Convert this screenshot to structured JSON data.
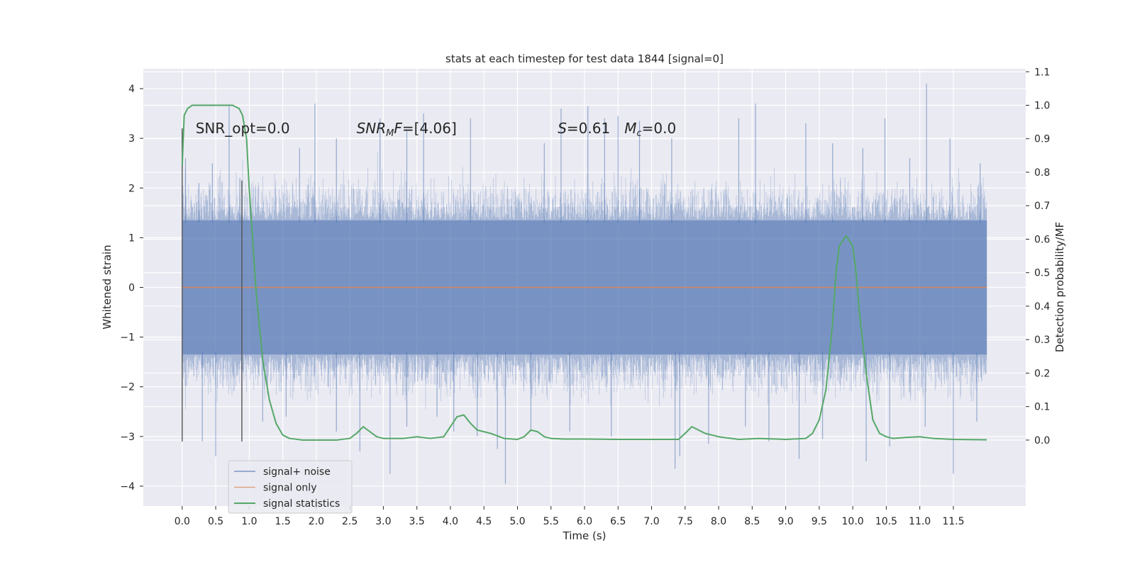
{
  "chart_data": {
    "type": "line",
    "title": "stats at each timestep for test data 1844 [signal=0]",
    "xlabel": "Time (s)",
    "ylabel": "Whitened strain",
    "ylabel_right": "Detection probability/MF",
    "xlim": [
      -0.58,
      12.58
    ],
    "ylim": [
      -4.4,
      4.4
    ],
    "ylim_right": [
      -0.197,
      1.109
    ],
    "xticks": [
      0.0,
      0.5,
      1.0,
      1.5,
      2.0,
      2.5,
      3.0,
      3.5,
      4.0,
      4.5,
      5.0,
      5.5,
      6.0,
      6.5,
      7.0,
      7.5,
      8.0,
      8.5,
      9.0,
      9.5,
      10.0,
      10.5,
      11.0,
      11.5
    ],
    "xtick_labels": [
      "0.0",
      "0.5",
      "1.0",
      "1.5",
      "2.0",
      "2.5",
      "3.0",
      "3.5",
      "4.0",
      "4.5",
      "5.0",
      "5.5",
      "6.0",
      "6.5",
      "7.0",
      "7.5",
      "8.0",
      "8.5",
      "9.0",
      "9.5",
      "10.0",
      "10.5",
      "11.0",
      "11.5"
    ],
    "yticks": [
      -4,
      -3,
      -2,
      -1,
      0,
      1,
      2,
      3,
      4
    ],
    "ytick_labels": [
      "−4",
      "−3",
      "−2",
      "−1",
      "0",
      "1",
      "2",
      "3",
      "4"
    ],
    "yticks_right": [
      0.0,
      0.1,
      0.2,
      0.3,
      0.4,
      0.5,
      0.6,
      0.7,
      0.8,
      0.9,
      1.0,
      1.1
    ],
    "ytick_labels_right": [
      "0.0",
      "0.1",
      "0.2",
      "0.3",
      "0.4",
      "0.5",
      "0.6",
      "0.7",
      "0.8",
      "0.9",
      "1.0",
      "1.1"
    ],
    "grid": true,
    "legend_position": "bottom-left",
    "annotations": [
      {
        "text": "SNR_opt=0.0",
        "x": 0.2,
        "y": 3.2
      },
      {
        "text": "SNR_MF=[4.06]",
        "x": 2.6,
        "y": 3.2
      },
      {
        "text": "S=0.61   M_c=0.0",
        "x": 5.6,
        "y": 3.2
      }
    ],
    "markers": [
      {
        "x": 0.0,
        "y0": -3.1,
        "y1": 3.2
      },
      {
        "x": 0.89,
        "y0": -3.1,
        "y1": 2.15
      }
    ],
    "series": [
      {
        "name": "signal+ noise",
        "axis": "left",
        "color": "#4c72b0",
        "render": "noise-band",
        "t_range": [
          0.0,
          12.0
        ],
        "core_band": [
          -1.35,
          1.35
        ],
        "spikes": [
          [
            0.05,
            2.6
          ],
          [
            0.25,
            2.1
          ],
          [
            0.45,
            2.5
          ],
          [
            0.7,
            3.65
          ],
          [
            0.86,
            2.2
          ],
          [
            1.75,
            2.8
          ],
          [
            1.98,
            3.7
          ],
          [
            2.3,
            3.0
          ],
          [
            2.95,
            3.4
          ],
          [
            3.35,
            3.15
          ],
          [
            3.6,
            3.5
          ],
          [
            4.3,
            3.4
          ],
          [
            5.4,
            2.9
          ],
          [
            5.65,
            3.6
          ],
          [
            6.05,
            3.65
          ],
          [
            6.3,
            3.4
          ],
          [
            6.5,
            3.45
          ],
          [
            6.82,
            3.35
          ],
          [
            7.3,
            3.0
          ],
          [
            8.3,
            3.4
          ],
          [
            8.55,
            3.7
          ],
          [
            9.3,
            3.3
          ],
          [
            9.7,
            2.9
          ],
          [
            10.15,
            2.8
          ],
          [
            10.48,
            3.4
          ],
          [
            10.85,
            2.6
          ],
          [
            11.1,
            4.1
          ],
          [
            11.45,
            3.0
          ],
          [
            11.9,
            2.5
          ]
        ],
        "dips": [
          [
            0.3,
            -3.1
          ],
          [
            0.5,
            -3.4
          ],
          [
            1.2,
            -2.7
          ],
          [
            1.55,
            -2.6
          ],
          [
            2.3,
            -2.9
          ],
          [
            2.65,
            -3.3
          ],
          [
            3.1,
            -3.75
          ],
          [
            3.35,
            -2.8
          ],
          [
            3.8,
            -2.6
          ],
          [
            4.05,
            -2.9
          ],
          [
            4.4,
            -3.0
          ],
          [
            4.7,
            -3.25
          ],
          [
            4.82,
            -3.95
          ],
          [
            5.2,
            -2.9
          ],
          [
            5.78,
            -2.9
          ],
          [
            6.4,
            -3.0
          ],
          [
            7.35,
            -3.65
          ],
          [
            7.42,
            -3.4
          ],
          [
            7.85,
            -3.15
          ],
          [
            8.4,
            -2.8
          ],
          [
            8.75,
            -3.1
          ],
          [
            9.2,
            -3.45
          ],
          [
            9.55,
            -3.05
          ],
          [
            10.2,
            -3.5
          ],
          [
            10.55,
            -3.2
          ],
          [
            11.08,
            -2.8
          ],
          [
            11.5,
            -3.75
          ],
          [
            11.85,
            -2.7
          ]
        ]
      },
      {
        "name": "signal only",
        "axis": "left",
        "color": "#dd8452",
        "render": "line",
        "x": [
          0.0,
          12.0
        ],
        "y": [
          0.0,
          0.0
        ]
      },
      {
        "name": "signal statistics",
        "axis": "right",
        "color": "#55a868",
        "render": "line",
        "x": [
          0.0,
          0.03,
          0.08,
          0.15,
          0.25,
          0.4,
          0.6,
          0.75,
          0.85,
          0.9,
          0.96,
          1.0,
          1.05,
          1.1,
          1.2,
          1.3,
          1.4,
          1.5,
          1.6,
          1.8,
          2.0,
          2.3,
          2.5,
          2.6,
          2.7,
          2.8,
          2.9,
          3.0,
          3.3,
          3.5,
          3.7,
          3.9,
          4.0,
          4.1,
          4.2,
          4.3,
          4.4,
          4.6,
          4.8,
          5.0,
          5.1,
          5.2,
          5.3,
          5.4,
          5.5,
          5.7,
          6.0,
          6.5,
          7.0,
          7.4,
          7.5,
          7.6,
          7.7,
          7.8,
          8.0,
          8.3,
          8.6,
          9.0,
          9.3,
          9.4,
          9.5,
          9.6,
          9.7,
          9.75,
          9.8,
          9.9,
          10.0,
          10.05,
          10.1,
          10.2,
          10.3,
          10.4,
          10.5,
          10.6,
          10.8,
          11.0,
          11.2,
          11.5,
          12.0
        ],
        "y": [
          0.82,
          0.97,
          0.99,
          1.0,
          1.0,
          1.0,
          1.0,
          1.0,
          0.99,
          0.97,
          0.9,
          0.75,
          0.6,
          0.45,
          0.24,
          0.12,
          0.05,
          0.015,
          0.005,
          0.0,
          0.0,
          0.0,
          0.005,
          0.02,
          0.04,
          0.025,
          0.01,
          0.005,
          0.005,
          0.01,
          0.005,
          0.01,
          0.04,
          0.07,
          0.075,
          0.05,
          0.03,
          0.02,
          0.005,
          0.002,
          0.01,
          0.03,
          0.025,
          0.01,
          0.005,
          0.003,
          0.003,
          0.002,
          0.002,
          0.002,
          0.02,
          0.04,
          0.03,
          0.02,
          0.01,
          0.002,
          0.005,
          0.002,
          0.005,
          0.02,
          0.06,
          0.15,
          0.35,
          0.5,
          0.58,
          0.61,
          0.58,
          0.5,
          0.38,
          0.2,
          0.06,
          0.02,
          0.01,
          0.005,
          0.008,
          0.01,
          0.005,
          0.002,
          0.001
        ]
      }
    ]
  }
}
